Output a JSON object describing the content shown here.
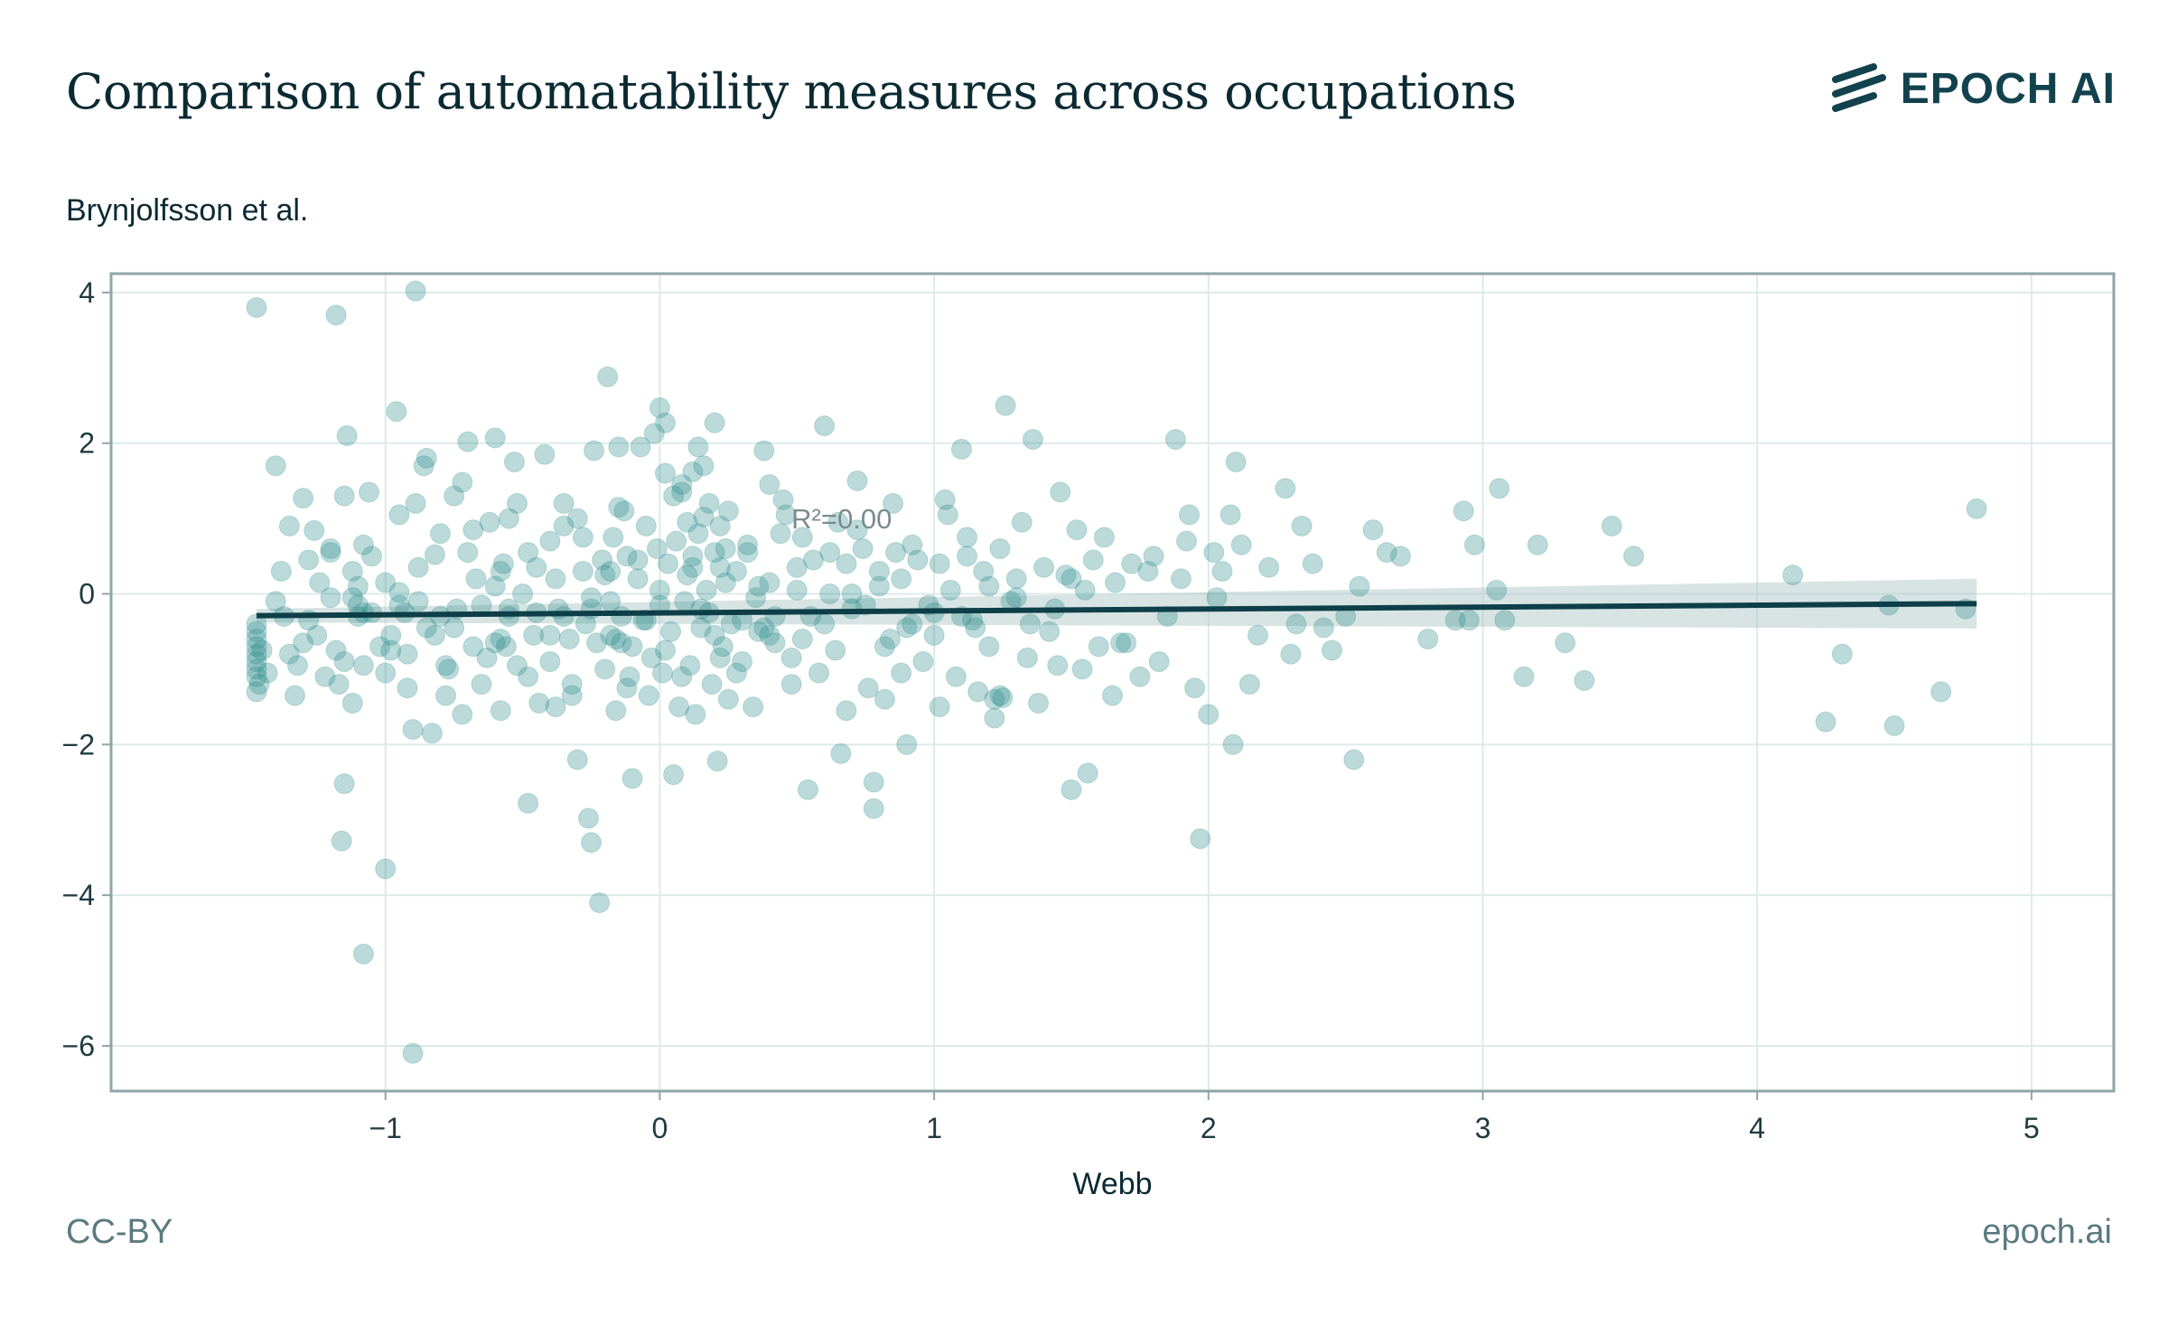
{
  "header": {
    "title": "Comparison of automatability measures across occupations",
    "subtitle": "Brynjolfsson et al.",
    "logo_text": "EPOCH AI"
  },
  "footer": {
    "license": "CC-BY",
    "site": "epoch.ai"
  },
  "colors": {
    "point": "#2e8b8b",
    "regression_line": "#0e3f48",
    "confidence_band": "#a9c4c4",
    "grid": "#dcebea",
    "frame": "#8ea6aa"
  },
  "chart_data": {
    "type": "scatter",
    "xlabel": "Webb",
    "ylabel": "",
    "xlim": [
      -2.0,
      5.3
    ],
    "ylim": [
      -6.6,
      4.25
    ],
    "x_ticks": [
      -1,
      0,
      1,
      2,
      3,
      4,
      5
    ],
    "x_tick_labels": [
      "−1",
      "0",
      "1",
      "2",
      "3",
      "4",
      "5"
    ],
    "y_ticks": [
      4,
      2,
      0,
      -2,
      -4,
      -6
    ],
    "y_tick_labels": [
      "4",
      "2",
      "0",
      "−2",
      "−4",
      "−6"
    ],
    "grid": true,
    "annotation": {
      "text": "R²=0.00",
      "x": 0.48,
      "y": 1.0
    },
    "regression": {
      "x": [
        -1.47,
        4.8
      ],
      "y": [
        -0.29,
        -0.13
      ],
      "band_halfwidth_start": 0.09,
      "band_halfwidth_end": 0.33
    },
    "points": [
      [
        -1.47,
        3.8
      ],
      [
        -1.18,
        3.7
      ],
      [
        -0.89,
        4.02
      ],
      [
        -1.47,
        -1.3
      ],
      [
        -1.47,
        -1.1
      ],
      [
        -1.47,
        -1.0
      ],
      [
        -1.47,
        -0.9
      ],
      [
        -1.47,
        -0.8
      ],
      [
        -1.47,
        -0.7
      ],
      [
        -1.47,
        -0.6
      ],
      [
        -1.47,
        -0.5
      ],
      [
        -1.47,
        -0.4
      ],
      [
        -1.46,
        -1.2
      ],
      [
        -1.45,
        -0.75
      ],
      [
        -1.43,
        -1.05
      ],
      [
        -1.4,
        1.7
      ],
      [
        -1.38,
        0.3
      ],
      [
        -1.37,
        -0.3
      ],
      [
        -1.35,
        -0.8
      ],
      [
        -1.33,
        -1.35
      ],
      [
        -1.3,
        1.27
      ],
      [
        -1.28,
        -0.35
      ],
      [
        -1.26,
        0.84
      ],
      [
        -1.22,
        -1.1
      ],
      [
        -1.2,
        0.6
      ],
      [
        -1.2,
        0.55
      ],
      [
        -1.17,
        -1.2
      ],
      [
        -1.15,
        -0.9
      ],
      [
        -1.14,
        2.1
      ],
      [
        -1.12,
        0.3
      ],
      [
        -1.1,
        0.1
      ],
      [
        -1.1,
        -0.3
      ],
      [
        -1.08,
        -0.95
      ],
      [
        -1.06,
        1.35
      ],
      [
        -1.05,
        0.5
      ],
      [
        -1.02,
        -0.7
      ],
      [
        -1.0,
        -1.05
      ],
      [
        -0.98,
        -0.75
      ],
      [
        -0.96,
        2.42
      ],
      [
        -0.95,
        0.02
      ],
      [
        -0.95,
        -0.15
      ],
      [
        -0.93,
        -0.25
      ],
      [
        -0.92,
        -0.8
      ],
      [
        -0.9,
        -1.8
      ],
      [
        -0.89,
        1.2
      ],
      [
        -0.88,
        -0.1
      ],
      [
        -0.86,
        1.7
      ],
      [
        -0.85,
        1.8
      ],
      [
        -0.83,
        -1.85
      ],
      [
        -0.82,
        -0.55
      ],
      [
        -1.15,
        -2.52
      ],
      [
        -1.16,
        -3.28
      ],
      [
        -1.0,
        -3.65
      ],
      [
        -1.08,
        -4.78
      ],
      [
        -0.9,
        -6.1
      ],
      [
        -0.82,
        0.52
      ],
      [
        -0.8,
        0.8
      ],
      [
        -0.78,
        -1.35
      ],
      [
        -0.77,
        -1.0
      ],
      [
        -0.75,
        -0.45
      ],
      [
        -0.74,
        -0.2
      ],
      [
        -0.72,
        1.48
      ],
      [
        -0.7,
        2.02
      ],
      [
        -0.7,
        0.55
      ],
      [
        -0.68,
        -0.7
      ],
      [
        -0.67,
        0.2
      ],
      [
        -0.65,
        -1.2
      ],
      [
        -0.63,
        -0.85
      ],
      [
        -0.62,
        0.95
      ],
      [
        -0.6,
        2.07
      ],
      [
        -0.58,
        -1.55
      ],
      [
        -0.57,
        0.4
      ],
      [
        -0.55,
        -0.3
      ],
      [
        -0.53,
        1.75
      ],
      [
        -0.52,
        1.2
      ],
      [
        -0.5,
        0.0
      ],
      [
        -0.48,
        -1.1
      ],
      [
        -0.48,
        -2.78
      ],
      [
        -0.46,
        -0.55
      ],
      [
        -0.45,
        0.35
      ],
      [
        -0.44,
        -1.45
      ],
      [
        -0.42,
        1.85
      ],
      [
        -0.4,
        0.7
      ],
      [
        -0.4,
        -0.9
      ],
      [
        -0.38,
        -1.5
      ],
      [
        -0.37,
        -0.2
      ],
      [
        -0.35,
        0.9
      ],
      [
        -0.33,
        -0.6
      ],
      [
        -0.32,
        -1.2
      ],
      [
        -0.3,
        1.0
      ],
      [
        -0.3,
        -2.2
      ],
      [
        -0.28,
        0.3
      ],
      [
        -0.27,
        -0.4
      ],
      [
        -0.26,
        -2.98
      ],
      [
        -0.25,
        -3.3
      ],
      [
        -0.24,
        1.9
      ],
      [
        -0.23,
        -0.65
      ],
      [
        -0.22,
        -4.1
      ],
      [
        -0.21,
        0.45
      ],
      [
        -0.2,
        -1.0
      ],
      [
        -0.19,
        2.88
      ],
      [
        -0.18,
        -0.1
      ],
      [
        -0.17,
        0.75
      ],
      [
        -0.16,
        -1.55
      ],
      [
        -0.15,
        1.95
      ],
      [
        -0.14,
        -0.3
      ],
      [
        -0.13,
        1.1
      ],
      [
        -0.12,
        0.5
      ],
      [
        -0.11,
        -1.1
      ],
      [
        -0.1,
        -0.7
      ],
      [
        -0.1,
        -2.45
      ],
      [
        -0.08,
        0.2
      ],
      [
        -0.07,
        1.95
      ],
      [
        -0.06,
        -0.35
      ],
      [
        -0.05,
        0.9
      ],
      [
        -0.04,
        -1.35
      ],
      [
        -0.03,
        -0.85
      ],
      [
        -0.02,
        2.13
      ],
      [
        -0.01,
        0.6
      ],
      [
        0.0,
        -0.15
      ],
      [
        0.01,
        -1.05
      ],
      [
        0.02,
        1.6
      ],
      [
        0.03,
        0.4
      ],
      [
        0.04,
        -0.5
      ],
      [
        0.05,
        -2.4
      ],
      [
        0.06,
        0.7
      ],
      [
        0.07,
        -1.5
      ],
      [
        0.08,
        1.35
      ],
      [
        0.09,
        -0.1
      ],
      [
        0.1,
        0.25
      ],
      [
        0.11,
        -0.95
      ],
      [
        0.12,
        1.62
      ],
      [
        0.13,
        -1.6
      ],
      [
        0.14,
        0.8
      ],
      [
        0.15,
        -0.45
      ],
      [
        0.16,
        1.02
      ],
      [
        0.17,
        0.05
      ],
      [
        0.18,
        -0.25
      ],
      [
        0.19,
        -1.2
      ],
      [
        0.2,
        0.55
      ],
      [
        0.21,
        -2.22
      ],
      [
        0.22,
        0.35
      ],
      [
        0.23,
        -0.7
      ],
      [
        0.24,
        0.15
      ],
      [
        0.25,
        -1.4
      ],
      [
        0.0,
        2.47
      ],
      [
        0.02,
        2.27
      ],
      [
        0.08,
        1.45
      ],
      [
        0.1,
        0.95
      ],
      [
        0.12,
        0.5
      ],
      [
        0.14,
        1.95
      ],
      [
        0.16,
        1.7
      ],
      [
        0.18,
        1.2
      ],
      [
        0.2,
        2.27
      ],
      [
        0.22,
        0.9
      ],
      [
        0.24,
        0.6
      ],
      [
        0.26,
        -0.4
      ],
      [
        0.28,
        0.3
      ],
      [
        0.3,
        -0.9
      ],
      [
        0.32,
        0.65
      ],
      [
        0.34,
        -1.5
      ],
      [
        0.36,
        0.1
      ],
      [
        0.38,
        1.9
      ],
      [
        0.4,
        1.45
      ],
      [
        0.42,
        -0.3
      ],
      [
        0.44,
        0.8
      ],
      [
        0.46,
        1.05
      ],
      [
        0.48,
        -1.2
      ],
      [
        0.5,
        0.35
      ],
      [
        0.52,
        -0.6
      ],
      [
        0.54,
        -2.6
      ],
      [
        0.56,
        0.45
      ],
      [
        0.58,
        -1.05
      ],
      [
        0.6,
        2.23
      ],
      [
        0.62,
        0.0
      ],
      [
        0.64,
        -0.75
      ],
      [
        0.66,
        -2.12
      ],
      [
        0.68,
        0.4
      ],
      [
        0.7,
        -0.2
      ],
      [
        0.72,
        1.5
      ],
      [
        0.74,
        0.6
      ],
      [
        0.76,
        -1.25
      ],
      [
        0.78,
        -2.85
      ],
      [
        0.78,
        -2.5
      ],
      [
        0.8,
        0.1
      ],
      [
        0.82,
        -1.4
      ],
      [
        0.84,
        -0.6
      ],
      [
        0.86,
        0.55
      ],
      [
        0.88,
        0.2
      ],
      [
        0.9,
        -2.0
      ],
      [
        0.92,
        -0.4
      ],
      [
        0.94,
        0.45
      ],
      [
        0.96,
        -0.9
      ],
      [
        0.98,
        -0.15
      ],
      [
        1.0,
        -0.55
      ],
      [
        1.02,
        -1.5
      ],
      [
        1.04,
        1.25
      ],
      [
        1.06,
        0.05
      ],
      [
        1.08,
        -1.1
      ],
      [
        1.1,
        1.92
      ],
      [
        1.12,
        0.75
      ],
      [
        1.14,
        -0.35
      ],
      [
        1.16,
        -1.3
      ],
      [
        1.18,
        0.3
      ],
      [
        1.2,
        -0.7
      ],
      [
        1.22,
        -1.65
      ],
      [
        1.24,
        0.6
      ],
      [
        1.26,
        2.5
      ],
      [
        1.28,
        -0.1
      ],
      [
        1.3,
        0.2
      ],
      [
        1.32,
        0.95
      ],
      [
        1.34,
        -0.85
      ],
      [
        1.36,
        2.05
      ],
      [
        1.38,
        -1.45
      ],
      [
        1.4,
        0.35
      ],
      [
        1.42,
        -0.5
      ],
      [
        1.44,
        -0.2
      ],
      [
        1.46,
        1.35
      ],
      [
        1.48,
        0.25
      ],
      [
        1.5,
        -2.6
      ],
      [
        1.52,
        0.85
      ],
      [
        1.54,
        -1.0
      ],
      [
        1.56,
        -2.38
      ],
      [
        1.58,
        0.45
      ],
      [
        1.6,
        -0.7
      ],
      [
        1.62,
        0.75
      ],
      [
        1.66,
        0.15
      ],
      [
        1.7,
        -0.65
      ],
      [
        1.72,
        0.4
      ],
      [
        1.75,
        -1.1
      ],
      [
        1.8,
        0.5
      ],
      [
        1.85,
        -0.3
      ],
      [
        1.88,
        2.05
      ],
      [
        1.9,
        0.2
      ],
      [
        1.93,
        1.05
      ],
      [
        1.95,
        -1.25
      ],
      [
        1.97,
        -3.25
      ],
      [
        2.0,
        -1.6
      ],
      [
        2.02,
        0.55
      ],
      [
        2.05,
        0.3
      ],
      [
        2.08,
        1.05
      ],
      [
        2.09,
        -2.0
      ],
      [
        2.1,
        1.75
      ],
      [
        2.15,
        -1.2
      ],
      [
        2.18,
        -0.55
      ],
      [
        2.22,
        0.35
      ],
      [
        2.28,
        1.4
      ],
      [
        2.3,
        -0.8
      ],
      [
        2.32,
        -0.4
      ],
      [
        2.34,
        0.9
      ],
      [
        2.38,
        0.4
      ],
      [
        2.42,
        -0.45
      ],
      [
        2.45,
        -0.75
      ],
      [
        2.5,
        -0.3
      ],
      [
        2.53,
        -2.2
      ],
      [
        2.55,
        0.1
      ],
      [
        2.6,
        0.85
      ],
      [
        2.65,
        0.55
      ],
      [
        2.7,
        0.5
      ],
      [
        2.8,
        -0.6
      ],
      [
        2.9,
        -0.35
      ],
      [
        2.93,
        1.1
      ],
      [
        2.95,
        -0.35
      ],
      [
        2.97,
        0.65
      ],
      [
        3.05,
        0.05
      ],
      [
        3.08,
        -0.35
      ],
      [
        3.06,
        1.4
      ],
      [
        3.15,
        -1.1
      ],
      [
        3.2,
        0.65
      ],
      [
        3.3,
        -0.65
      ],
      [
        3.37,
        -1.15
      ],
      [
        3.47,
        0.9
      ],
      [
        3.55,
        0.5
      ],
      [
        4.13,
        0.25
      ],
      [
        4.25,
        -1.7
      ],
      [
        4.31,
        -0.8
      ],
      [
        4.48,
        -0.15
      ],
      [
        4.5,
        -1.75
      ],
      [
        4.67,
        -1.3
      ],
      [
        4.76,
        -0.2
      ],
      [
        4.8,
        1.13
      ],
      [
        -1.25,
        -0.55
      ],
      [
        -1.05,
        -0.25
      ],
      [
        -0.85,
        -0.45
      ],
      [
        -0.65,
        -0.15
      ],
      [
        -0.45,
        -0.25
      ],
      [
        -0.25,
        -0.05
      ],
      [
        -0.05,
        -0.35
      ],
      [
        0.15,
        -0.2
      ],
      [
        0.35,
        -0.05
      ],
      [
        0.55,
        -0.3
      ],
      [
        0.75,
        -0.15
      ],
      [
        -1.2,
        -0.05
      ],
      [
        -1.0,
        0.15
      ],
      [
        -0.8,
        -0.3
      ],
      [
        -0.6,
        0.1
      ],
      [
        -0.4,
        -0.55
      ],
      [
        -0.2,
        0.25
      ],
      [
        0.0,
        0.05
      ],
      [
        0.2,
        -0.55
      ],
      [
        0.4,
        0.15
      ],
      [
        0.6,
        -0.4
      ],
      [
        0.8,
        0.3
      ],
      [
        1.0,
        -0.25
      ],
      [
        1.2,
        0.1
      ],
      [
        -1.32,
        -0.95
      ],
      [
        -1.12,
        -1.45
      ],
      [
        -0.92,
        -1.25
      ],
      [
        -0.72,
        -1.6
      ],
      [
        -0.52,
        -0.95
      ],
      [
        -0.32,
        -1.35
      ],
      [
        -0.12,
        -1.25
      ],
      [
        0.08,
        -1.1
      ],
      [
        0.28,
        -1.05
      ],
      [
        0.48,
        -0.85
      ],
      [
        0.68,
        -1.55
      ],
      [
        0.88,
        -1.05
      ],
      [
        -1.28,
        0.45
      ],
      [
        -1.08,
        0.65
      ],
      [
        -0.88,
        0.35
      ],
      [
        -0.68,
        0.85
      ],
      [
        -0.48,
        0.55
      ],
      [
        -0.28,
        0.75
      ],
      [
        -0.08,
        0.45
      ],
      [
        0.12,
        0.35
      ],
      [
        0.32,
        0.55
      ],
      [
        0.52,
        0.75
      ],
      [
        0.72,
        0.85
      ],
      [
        0.92,
        0.65
      ],
      [
        1.12,
        0.5
      ],
      [
        -1.35,
        0.9
      ],
      [
        -1.15,
        1.3
      ],
      [
        -0.95,
        1.05
      ],
      [
        -0.75,
        1.3
      ],
      [
        -0.55,
        1.0
      ],
      [
        -0.35,
        1.2
      ],
      [
        -0.15,
        1.15
      ],
      [
        0.05,
        1.3
      ],
      [
        0.25,
        1.1
      ],
      [
        0.45,
        1.25
      ],
      [
        0.65,
        0.95
      ],
      [
        0.85,
        1.2
      ],
      [
        1.05,
        1.05
      ],
      [
        -0.6,
        -0.65
      ],
      [
        -0.58,
        -0.6
      ],
      [
        -0.56,
        -0.7
      ],
      [
        -0.18,
        -0.55
      ],
      [
        -0.16,
        -0.6
      ],
      [
        -0.14,
        -0.65
      ],
      [
        1.24,
        -1.35
      ],
      [
        1.22,
        -1.4
      ],
      [
        1.25,
        -1.38
      ],
      [
        0.36,
        -0.5
      ],
      [
        0.38,
        -0.45
      ],
      [
        0.4,
        -0.55
      ],
      [
        -1.1,
        -0.15
      ],
      [
        -1.12,
        -0.05
      ],
      [
        -1.08,
        -0.25
      ],
      [
        -0.55,
        -0.2
      ],
      [
        -0.35,
        -0.3
      ],
      [
        -0.25,
        -0.2
      ],
      [
        0.3,
        -0.35
      ],
      [
        0.5,
        0.05
      ],
      [
        0.7,
        0.0
      ],
      [
        0.9,
        -0.45
      ],
      [
        1.1,
        -0.3
      ],
      [
        1.3,
        -0.05
      ],
      [
        1.5,
        0.2
      ],
      [
        -1.4,
        -0.1
      ],
      [
        -1.3,
        -0.65
      ],
      [
        -1.24,
        0.15
      ],
      [
        -1.18,
        -0.75
      ],
      [
        -0.98,
        -0.55
      ],
      [
        -0.78,
        -0.95
      ],
      [
        -0.58,
        0.3
      ],
      [
        -0.38,
        0.2
      ],
      [
        -0.18,
        0.3
      ],
      [
        0.02,
        -0.75
      ],
      [
        0.22,
        -0.85
      ],
      [
        0.42,
        -0.65
      ],
      [
        0.62,
        0.55
      ],
      [
        0.82,
        -0.7
      ],
      [
        1.02,
        0.4
      ],
      [
        1.15,
        -0.45
      ],
      [
        1.35,
        -0.4
      ],
      [
        1.45,
        -0.95
      ],
      [
        1.55,
        0.05
      ],
      [
        1.65,
        -1.35
      ],
      [
        1.68,
        -0.65
      ],
      [
        1.78,
        0.3
      ],
      [
        1.82,
        -0.9
      ],
      [
        1.92,
        0.7
      ],
      [
        2.03,
        -0.05
      ],
      [
        2.12,
        0.65
      ]
    ]
  }
}
